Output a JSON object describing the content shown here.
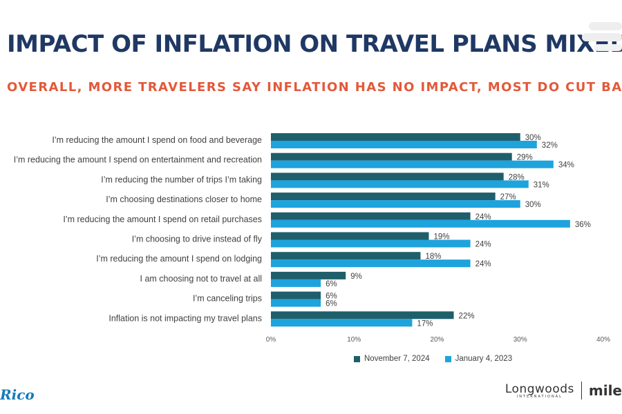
{
  "header": {
    "title": "IMPACT OF INFLATION ON TRAVEL PLANS MIXED",
    "subtitle": "OVERALL, MORE TRAVELERS SAY INFLATION HAS NO IMPACT, MOST DO CUT BACK"
  },
  "colors": {
    "title": "#1f3864",
    "subtitle": "#e2593a",
    "series_nov_2024": "#1f5f6b",
    "series_jan_2023": "#1ea3dc"
  },
  "chart_data": {
    "type": "bar",
    "orientation": "horizontal",
    "categories": [
      "I’m reducing the amount I spend on food and beverage",
      "I’m reducing the amount I spend on entertainment and recreation",
      "I’m reducing the number of trips I’m taking",
      "I’m choosing destinations closer to home",
      "I’m reducing the amount I spend on retail purchases",
      "I’m choosing to drive instead of fly",
      "I’m reducing the amount I spend on lodging",
      "I am choosing not to travel at all",
      "I’m canceling trips",
      "Inflation is not impacting my travel plans"
    ],
    "series": [
      {
        "name": "November 7, 2024",
        "values": [
          30,
          29,
          28,
          27,
          24,
          19,
          18,
          9,
          6,
          22
        ]
      },
      {
        "name": "January 4, 2023",
        "values": [
          32,
          34,
          31,
          30,
          36,
          24,
          24,
          6,
          6,
          17
        ]
      }
    ],
    "value_suffix": "%",
    "xlim": [
      0,
      40
    ],
    "xticks": [
      "0%",
      "10%",
      "20%",
      "30%",
      "40%"
    ],
    "legend_position": "bottom",
    "grid": false
  },
  "logos": {
    "left": "Rico",
    "right_brand": "Longwoods",
    "right_brand_sub": "INTERNATIONAL",
    "right_partner": "mile"
  }
}
